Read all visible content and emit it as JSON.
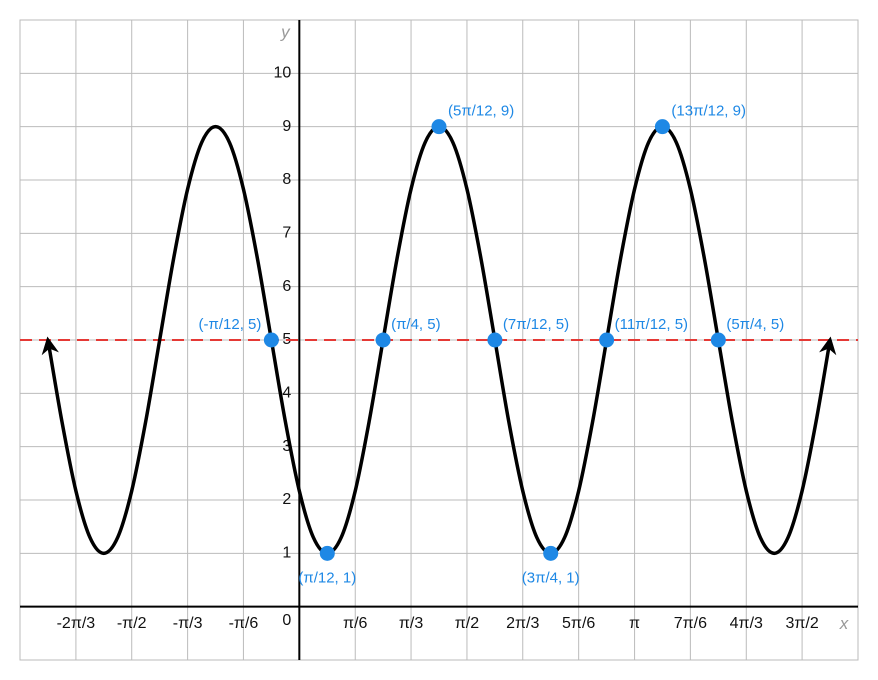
{
  "chart_data": {
    "type": "line",
    "x_label": "x",
    "y_label": "y",
    "origin_label": "0",
    "xlim": [
      -2.618,
      5.236
    ],
    "ylim": [
      -1,
      11
    ],
    "xticks": [
      {
        "value": -2.094,
        "label": "-2π/3"
      },
      {
        "value": -1.571,
        "label": "-π/2"
      },
      {
        "value": -1.047,
        "label": "-π/3"
      },
      {
        "value": -0.524,
        "label": "-π/6"
      },
      {
        "value": 0.524,
        "label": "π/6"
      },
      {
        "value": 1.047,
        "label": "π/3"
      },
      {
        "value": 1.571,
        "label": "π/2"
      },
      {
        "value": 2.094,
        "label": "2π/3"
      },
      {
        "value": 2.618,
        "label": "5π/6"
      },
      {
        "value": 3.142,
        "label": "π"
      },
      {
        "value": 3.665,
        "label": "7π/6"
      },
      {
        "value": 4.189,
        "label": "4π/3"
      },
      {
        "value": 4.712,
        "label": "3π/2"
      }
    ],
    "yticks": [
      1,
      2,
      3,
      4,
      5,
      6,
      7,
      8,
      9,
      10
    ],
    "grid": true,
    "x": [
      -2.356,
      -2.225,
      -2.094,
      -1.963,
      -1.833,
      -1.702,
      -1.571,
      -1.44,
      -1.309,
      -1.178,
      -1.047,
      -0.916,
      -0.785,
      -0.654,
      -0.524,
      -0.393,
      -0.262,
      -0.131,
      0,
      0.131,
      0.262,
      0.393,
      0.524,
      0.654,
      0.785,
      0.916,
      1.047,
      1.178,
      1.309,
      1.44,
      1.571,
      1.702,
      1.833,
      1.963,
      2.094,
      2.225,
      2.356,
      2.487,
      2.618,
      2.749,
      2.88,
      3.011,
      3.142,
      3.272,
      3.403,
      3.534,
      3.665,
      3.796,
      3.927,
      4.058,
      4.189,
      4.32,
      4.451,
      4.581,
      4.712,
      4.843,
      4.974
    ],
    "series": [
      {
        "color": "#000000",
        "values": [
          5,
          3.47,
          2.17,
          1.3,
          1,
          1.3,
          2.17,
          3.47,
          5,
          6.53,
          7.83,
          8.7,
          9,
          8.7,
          7.83,
          6.53,
          5,
          3.47,
          2.17,
          1.3,
          1,
          1.3,
          2.17,
          3.47,
          5,
          6.53,
          7.83,
          8.7,
          9,
          8.7,
          7.83,
          6.53,
          5,
          3.47,
          2.17,
          1.3,
          1,
          1.3,
          2.17,
          3.47,
          5,
          6.53,
          7.83,
          8.7,
          9,
          8.7,
          7.83,
          6.53,
          5,
          3.47,
          2.17,
          1.3,
          1,
          1.3,
          2.17,
          3.47,
          5
        ]
      }
    ],
    "hline": {
      "value": 5,
      "color": "#e53935"
    },
    "points": {
      "color": "#1e88e5",
      "x": [
        -0.262,
        0.262,
        0.785,
        1.309,
        1.833,
        2.356,
        2.88,
        3.403,
        3.927
      ],
      "y": [
        5,
        1,
        5,
        9,
        5,
        1,
        5,
        9,
        5
      ],
      "labels": [
        "(-π/12, 5)",
        "(π/12, 1)",
        "(π/4, 5)",
        "(5π/12, 9)",
        "(7π/12, 5)",
        "(3π/4, 1)",
        "(11π/12, 5)",
        "(13π/12, 9)",
        "(5π/4, 5)"
      ]
    }
  }
}
